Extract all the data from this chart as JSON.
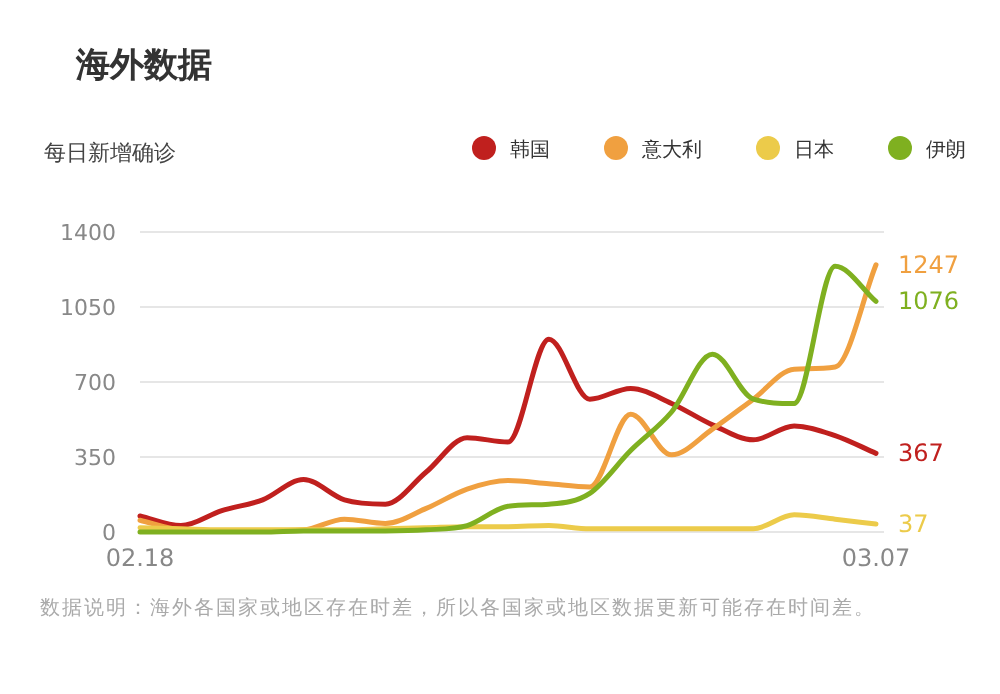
{
  "chart_data": {
    "type": "line",
    "title": "海外数据",
    "subtitle": "每日新增确诊",
    "categories": [
      "02.18",
      null,
      null,
      null,
      null,
      null,
      null,
      null,
      null,
      null,
      null,
      null,
      null,
      null,
      null,
      null,
      null,
      null,
      "03.07"
    ],
    "series": [
      {
        "name": "韩国",
        "color": "#c0201e",
        "values": [
          75,
          30,
          100,
          150,
          245,
          150,
          130,
          280,
          440,
          420,
          900,
          620,
          670,
          600,
          500,
          430,
          495,
          450,
          367
        ],
        "value_labels": [
          null,
          null,
          null,
          null,
          null,
          null,
          null,
          null,
          null,
          null,
          null,
          null,
          null,
          null,
          null,
          null,
          null,
          null,
          "367"
        ]
      },
      {
        "name": "意大利",
        "color": "#f0a040",
        "values": [
          55,
          10,
          5,
          5,
          10,
          60,
          40,
          110,
          200,
          240,
          225,
          210,
          550,
          360,
          480,
          620,
          760,
          770,
          1247
        ],
        "value_labels": [
          null,
          null,
          null,
          null,
          null,
          null,
          null,
          null,
          null,
          null,
          null,
          null,
          null,
          null,
          null,
          null,
          null,
          null,
          "1247"
        ]
      },
      {
        "name": "日本",
        "color": "#eccb4a",
        "values": [
          20,
          15,
          10,
          10,
          10,
          10,
          15,
          20,
          25,
          25,
          30,
          15,
          15,
          15,
          15,
          15,
          80,
          60,
          37
        ],
        "value_labels": [
          null,
          null,
          null,
          null,
          null,
          null,
          null,
          null,
          null,
          null,
          null,
          null,
          null,
          null,
          null,
          null,
          null,
          null,
          "37"
        ]
      },
      {
        "name": "伊朗",
        "color": "#7fb020",
        "values": [
          0,
          0,
          0,
          0,
          5,
          5,
          5,
          10,
          30,
          120,
          130,
          180,
          380,
          560,
          830,
          620,
          600,
          1240,
          1076
        ],
        "value_labels": [
          null,
          null,
          null,
          null,
          null,
          null,
          null,
          null,
          null,
          null,
          null,
          null,
          null,
          null,
          null,
          null,
          null,
          null,
          "1076"
        ]
      }
    ],
    "ylim": [
      0,
      1400
    ],
    "yticks": [
      0,
      350,
      700,
      1050,
      1400
    ],
    "grid": "y",
    "legend": "top right",
    "marker": "none",
    "line_style": "solid",
    "annotations": [
      "数据说明：海外各国家或地区存在时差，所以各国家或地区数据更新可能存在时间差。"
    ]
  }
}
